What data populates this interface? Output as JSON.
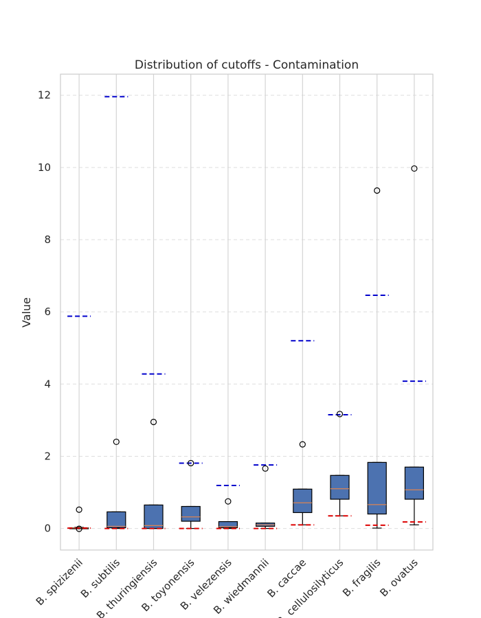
{
  "chart_data": {
    "type": "boxplot",
    "title": "Distribution of cutoffs - Contamination",
    "xlabel": "",
    "ylabel": "Value",
    "ylim": [
      -0.58,
      12.6
    ],
    "yticks": [
      0,
      2,
      4,
      6,
      8,
      10,
      12
    ],
    "grid": true,
    "box_color": "#4c72b0",
    "median_color": "#dd8452",
    "upper_cutoff_color": "#0000cc",
    "lower_cutoff_color": "#dd0000",
    "categories": [
      "B. spizizenii",
      "B. subtilis",
      "B. thuringiensis",
      "B. toyonensis",
      "B. velezensis",
      "B. wiedmannii",
      "B. caccae",
      "B. cellulosilyticus",
      "B. fragilis",
      "B. ovatus"
    ],
    "boxes": [
      {
        "whislo": 0.0,
        "q1": 0.01,
        "med": 0.015,
        "q3": 0.02,
        "whishi": 0.03,
        "fliers": [
          0.52,
          -0.01
        ],
        "upper_cutoff": 5.88,
        "lower_cutoff": 0.01
      },
      {
        "whislo": 0.0,
        "q1": 0.02,
        "med": 0.06,
        "q3": 0.46,
        "whishi": 0.46,
        "fliers": [
          2.4
        ],
        "upper_cutoff": 11.96,
        "lower_cutoff": 0.0
      },
      {
        "whislo": 0.0,
        "q1": 0.0,
        "med": 0.08,
        "q3": 0.65,
        "whishi": 0.65,
        "fliers": [
          2.95
        ],
        "upper_cutoff": 4.28,
        "lower_cutoff": 0.0
      },
      {
        "whislo": 0.0,
        "q1": 0.2,
        "med": 0.32,
        "q3": 0.61,
        "whishi": 0.61,
        "fliers": [
          1.81
        ],
        "upper_cutoff": 1.81,
        "lower_cutoff": 0.0
      },
      {
        "whislo": 0.0,
        "q1": 0.02,
        "med": 0.05,
        "q3": 0.19,
        "whishi": 0.19,
        "fliers": [
          0.75
        ],
        "upper_cutoff": 1.19,
        "lower_cutoff": 0.0
      },
      {
        "whislo": 0.0,
        "q1": 0.06,
        "med": 0.1,
        "q3": 0.15,
        "whishi": 0.15,
        "fliers": [
          1.66
        ],
        "upper_cutoff": 1.76,
        "lower_cutoff": 0.0
      },
      {
        "whislo": 0.1,
        "q1": 0.44,
        "med": 0.71,
        "q3": 1.09,
        "whishi": 1.09,
        "fliers": [
          2.33
        ],
        "upper_cutoff": 5.2,
        "lower_cutoff": 0.1
      },
      {
        "whislo": 0.35,
        "q1": 0.81,
        "med": 1.1,
        "q3": 1.47,
        "whishi": 1.47,
        "fliers": [
          3.17
        ],
        "upper_cutoff": 3.15,
        "lower_cutoff": 0.35
      },
      {
        "whislo": 0.01,
        "q1": 0.4,
        "med": 0.66,
        "q3": 1.83,
        "whishi": 1.83,
        "fliers": [
          9.36
        ],
        "upper_cutoff": 6.46,
        "lower_cutoff": 0.09
      },
      {
        "whislo": 0.1,
        "q1": 0.81,
        "med": 1.07,
        "q3": 1.7,
        "whishi": 1.7,
        "fliers": [
          9.97
        ],
        "upper_cutoff": 4.08,
        "lower_cutoff": 0.18
      }
    ]
  }
}
